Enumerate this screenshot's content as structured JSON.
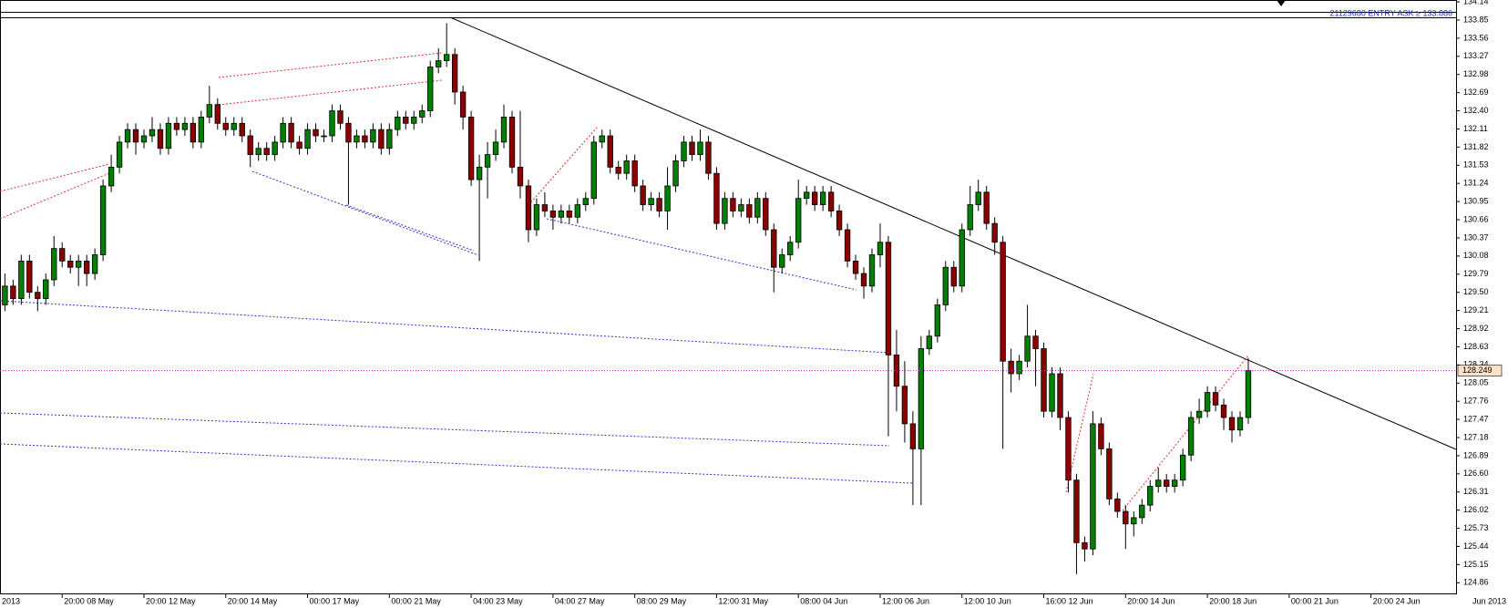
{
  "chart_data": {
    "type": "candlestick",
    "header_label": "21129680 ENTRY ASK ≥ 133.886",
    "current_price": 128.249,
    "x_axis_start_label": "2013",
    "x_axis_end_label": "Jun 2013",
    "up_color": "#008000",
    "down_color": "#8b0000",
    "categories": [
      null,
      null,
      null,
      null,
      null,
      null,
      null,
      "20:00 08 May",
      null,
      null,
      null,
      null,
      null,
      null,
      null,
      null,
      null,
      "20:00 12 May",
      null,
      null,
      null,
      null,
      null,
      null,
      null,
      null,
      null,
      "20:00 14 May",
      null,
      null,
      null,
      null,
      null,
      null,
      null,
      null,
      null,
      "00:00 17 May",
      null,
      null,
      null,
      null,
      null,
      null,
      null,
      null,
      null,
      "00:00 21 May",
      null,
      null,
      null,
      null,
      null,
      null,
      null,
      null,
      null,
      "04:00 23 May",
      null,
      null,
      null,
      null,
      null,
      null,
      null,
      null,
      null,
      "04:00 27 May",
      null,
      null,
      null,
      null,
      null,
      null,
      null,
      null,
      null,
      "08:00 29 May",
      null,
      null,
      null,
      null,
      null,
      null,
      null,
      null,
      null,
      "12:00 31 May",
      null,
      null,
      null,
      null,
      null,
      null,
      null,
      null,
      null,
      "08:00 04 Jun",
      null,
      null,
      null,
      null,
      null,
      null,
      null,
      null,
      null,
      "12:00 06 Jun",
      null,
      null,
      null,
      null,
      null,
      null,
      null,
      null,
      null,
      "12:00 10 Jun",
      null,
      null,
      null,
      null,
      null,
      null,
      null,
      null,
      null,
      "16:00 12 Jun",
      null,
      null,
      null,
      null,
      null,
      null,
      null,
      null,
      null,
      "20:00 14 Jun",
      null,
      null,
      null,
      null,
      null,
      null,
      null,
      null,
      null,
      "20:00 18 Jun",
      null,
      null,
      null,
      null,
      null,
      null,
      null,
      null,
      null,
      "00:00 21 Jun",
      null,
      null,
      null,
      null,
      null,
      null,
      null,
      null,
      null,
      "20:00 24 Jun",
      null,
      null,
      null,
      null,
      null,
      null,
      null,
      null,
      null,
      null
    ],
    "open": [
      129.3,
      129.6,
      129.4,
      130.0,
      129.5,
      129.4,
      129.7,
      130.2,
      130.0,
      129.9,
      130.0,
      129.8,
      130.1,
      131.2,
      131.5,
      131.9,
      132.1,
      131.9,
      132.0,
      132.1,
      131.8,
      132.2,
      132.1,
      132.2,
      131.9,
      132.3,
      132.5,
      132.2,
      132.1,
      132.2,
      132.0,
      131.7,
      131.8,
      131.7,
      131.9,
      132.2,
      131.9,
      131.8,
      132.1,
      132.0,
      132.0,
      132.4,
      132.2,
      131.9,
      132.0,
      131.9,
      132.1,
      131.8,
      132.1,
      132.3,
      132.2,
      132.3,
      132.4,
      133.1,
      133.2,
      133.3,
      132.7,
      132.3,
      131.3,
      131.5,
      131.7,
      131.9,
      132.3,
      131.5,
      131.2,
      130.5,
      130.9,
      130.8,
      130.7,
      130.8,
      130.7,
      130.9,
      131.0,
      131.9,
      132.0,
      131.5,
      131.4,
      131.6,
      131.2,
      130.9,
      131.0,
      130.8,
      131.2,
      131.6,
      131.9,
      131.7,
      131.9,
      131.4,
      130.6,
      131.0,
      130.8,
      130.9,
      130.7,
      131.0,
      130.5,
      129.9,
      130.1,
      130.3,
      131.0,
      131.1,
      130.9,
      131.1,
      130.8,
      130.5,
      130.0,
      129.8,
      129.6,
      130.1,
      130.3,
      128.5,
      128.0,
      127.4,
      127.0,
      128.6,
      128.8,
      129.3,
      129.9,
      129.6,
      130.5,
      130.9,
      131.1,
      130.6,
      130.3,
      128.4,
      128.2,
      128.4,
      128.8,
      128.6,
      127.6,
      128.2,
      127.5,
      126.5,
      125.5,
      125.4,
      127.4,
      127.0,
      126.2,
      126.0,
      125.8,
      125.9,
      126.1,
      126.4,
      126.5,
      126.4,
      126.5,
      126.9,
      127.5,
      127.6,
      127.9,
      127.7,
      127.5,
      127.3,
      127.5,
      null,
      null,
      null,
      null,
      null,
      null,
      null,
      null,
      null,
      null,
      null,
      null,
      null,
      null,
      null,
      null,
      null,
      null,
      null,
      null,
      null,
      null,
      null,
      null,
      null
    ],
    "high": [
      129.8,
      129.7,
      130.1,
      130.1,
      129.6,
      129.8,
      130.4,
      130.3,
      130.1,
      130.1,
      130.1,
      130.2,
      131.3,
      131.7,
      132.0,
      132.2,
      132.2,
      132.1,
      132.3,
      132.2,
      132.3,
      132.3,
      132.3,
      132.3,
      132.4,
      132.8,
      132.6,
      132.3,
      132.3,
      132.3,
      132.1,
      131.9,
      131.9,
      132.0,
      132.3,
      132.3,
      132.0,
      132.2,
      132.2,
      132.1,
      132.5,
      132.5,
      132.3,
      132.1,
      132.1,
      132.2,
      132.2,
      132.2,
      132.4,
      132.4,
      132.4,
      132.5,
      133.2,
      133.4,
      133.8,
      133.4,
      132.8,
      132.4,
      131.7,
      131.9,
      132.1,
      132.5,
      132.4,
      132.4,
      131.3,
      131.0,
      131.1,
      130.9,
      130.9,
      130.9,
      131.0,
      131.1,
      132.0,
      132.1,
      132.1,
      131.6,
      131.7,
      131.7,
      131.3,
      131.1,
      131.1,
      131.5,
      131.7,
      132.0,
      132.0,
      132.1,
      132.0,
      131.5,
      131.1,
      131.1,
      131.0,
      131.0,
      131.1,
      131.1,
      130.6,
      130.2,
      130.4,
      131.3,
      131.2,
      131.2,
      131.2,
      131.2,
      130.9,
      130.6,
      130.1,
      129.9,
      130.2,
      130.6,
      130.4,
      128.9,
      128.4,
      127.6,
      128.8,
      128.9,
      129.4,
      130.0,
      130.0,
      130.6,
      131.2,
      131.3,
      131.2,
      130.7,
      130.4,
      128.6,
      128.5,
      129.3,
      128.9,
      128.7,
      128.3,
      128.3,
      127.6,
      126.6,
      125.6,
      127.6,
      127.5,
      127.1,
      126.3,
      126.1,
      126.0,
      126.2,
      126.5,
      126.7,
      126.6,
      126.6,
      127.0,
      127.6,
      127.8,
      128.0,
      128.0,
      127.8,
      127.6,
      127.6,
      128.45,
      null,
      null,
      null,
      null,
      null,
      null,
      null,
      null,
      null,
      null,
      null,
      null,
      null,
      null,
      null,
      null,
      null,
      null,
      null,
      null,
      null,
      null,
      null,
      null,
      null
    ],
    "low": [
      129.2,
      129.3,
      129.3,
      129.4,
      129.2,
      129.3,
      129.6,
      129.9,
      129.8,
      129.6,
      129.6,
      129.7,
      130.0,
      131.1,
      131.4,
      131.8,
      131.7,
      131.8,
      131.9,
      131.7,
      131.7,
      132.0,
      132.0,
      131.8,
      131.8,
      132.2,
      132.1,
      132.0,
      132.0,
      131.9,
      131.5,
      131.6,
      131.6,
      131.6,
      131.8,
      131.8,
      131.7,
      131.7,
      131.9,
      131.9,
      131.9,
      132.1,
      130.9,
      131.8,
      131.8,
      131.8,
      131.7,
      131.7,
      132.0,
      132.1,
      132.1,
      132.2,
      132.3,
      133.0,
      133.1,
      132.5,
      132.1,
      131.2,
      130.0,
      131.0,
      131.6,
      131.8,
      131.4,
      131.0,
      130.3,
      130.4,
      130.7,
      130.5,
      130.6,
      130.6,
      130.6,
      130.8,
      130.9,
      131.8,
      131.4,
      131.3,
      131.3,
      131.1,
      130.8,
      130.8,
      130.7,
      130.5,
      131.1,
      131.5,
      131.6,
      131.6,
      131.3,
      130.5,
      130.5,
      130.7,
      130.7,
      130.6,
      130.6,
      130.4,
      129.5,
      129.8,
      130.0,
      130.2,
      130.9,
      130.8,
      130.8,
      130.7,
      130.4,
      129.9,
      129.7,
      129.4,
      129.5,
      129.9,
      127.2,
      127.6,
      127.1,
      126.1,
      126.1,
      128.5,
      128.7,
      129.2,
      129.5,
      129.5,
      130.4,
      130.8,
      130.5,
      130.1,
      127.0,
      127.9,
      128.1,
      128.3,
      128.0,
      127.5,
      127.5,
      127.3,
      126.3,
      125.0,
      125.2,
      125.3,
      126.9,
      126.1,
      125.9,
      125.4,
      125.6,
      125.8,
      126.0,
      126.3,
      126.3,
      126.3,
      126.4,
      126.8,
      127.4,
      127.5,
      127.6,
      127.3,
      127.1,
      127.2,
      127.4,
      null,
      null,
      null,
      null,
      null,
      null,
      null,
      null,
      null,
      null,
      null,
      null,
      null,
      null,
      null,
      null,
      null,
      null,
      null,
      null,
      null,
      null,
      null,
      null,
      null
    ],
    "close": [
      129.6,
      129.4,
      130.0,
      129.5,
      129.4,
      129.7,
      130.2,
      130.0,
      129.9,
      130.0,
      129.8,
      130.1,
      131.2,
      131.5,
      131.9,
      132.1,
      131.9,
      132.0,
      132.1,
      131.8,
      132.2,
      132.1,
      132.2,
      131.9,
      132.3,
      132.5,
      132.2,
      132.1,
      132.2,
      132.0,
      131.7,
      131.8,
      131.7,
      131.9,
      132.2,
      131.9,
      131.8,
      132.1,
      132.0,
      132.0,
      132.4,
      132.2,
      131.9,
      132.0,
      131.9,
      132.1,
      131.8,
      132.1,
      132.3,
      132.2,
      132.3,
      132.4,
      133.1,
      133.2,
      133.3,
      132.7,
      132.3,
      131.3,
      131.5,
      131.7,
      131.9,
      132.3,
      131.5,
      131.2,
      130.5,
      130.9,
      130.8,
      130.7,
      130.8,
      130.7,
      130.9,
      131.0,
      131.9,
      132.0,
      131.5,
      131.4,
      131.6,
      131.2,
      130.9,
      131.0,
      130.8,
      131.2,
      131.6,
      131.9,
      131.7,
      131.9,
      131.4,
      130.6,
      131.0,
      130.8,
      130.9,
      130.7,
      131.0,
      130.5,
      129.9,
      130.1,
      130.3,
      131.0,
      131.1,
      130.9,
      131.1,
      130.8,
      130.5,
      130.0,
      129.8,
      129.6,
      130.1,
      130.3,
      128.5,
      128.0,
      127.4,
      127.0,
      128.6,
      128.8,
      129.3,
      129.9,
      129.6,
      130.5,
      130.9,
      131.1,
      130.6,
      130.3,
      128.4,
      128.2,
      128.4,
      128.8,
      128.6,
      127.6,
      128.2,
      127.5,
      126.5,
      125.5,
      125.4,
      127.4,
      127.0,
      126.2,
      126.0,
      125.8,
      125.9,
      126.1,
      126.4,
      126.5,
      126.4,
      126.5,
      126.9,
      127.5,
      127.6,
      127.9,
      127.7,
      127.5,
      127.3,
      127.5,
      128.25,
      null,
      null,
      null,
      null,
      null,
      null,
      null,
      null,
      null,
      null,
      null,
      null,
      null,
      null,
      null,
      null,
      null,
      null,
      null,
      null,
      null,
      null,
      null,
      null,
      null
    ],
    "ylim": [
      124.69,
      134.17
    ],
    "yticks": [
      134.14,
      133.85,
      133.56,
      133.27,
      132.98,
      132.69,
      {
        "value": 132.4,
        "label": "132.40"
      },
      132.11,
      131.82,
      131.53,
      131.24,
      130.95,
      130.66,
      130.37,
      130.08,
      129.79,
      {
        "value": 129.5,
        "label": "129.50"
      },
      129.21,
      128.92,
      128.63,
      128.34,
      128.05,
      127.76,
      127.47,
      127.18,
      126.89,
      {
        "value": 126.6,
        "label": "126.60"
      },
      126.31,
      126.02,
      125.73,
      125.44,
      125.15,
      124.86
    ],
    "grid": false
  }
}
